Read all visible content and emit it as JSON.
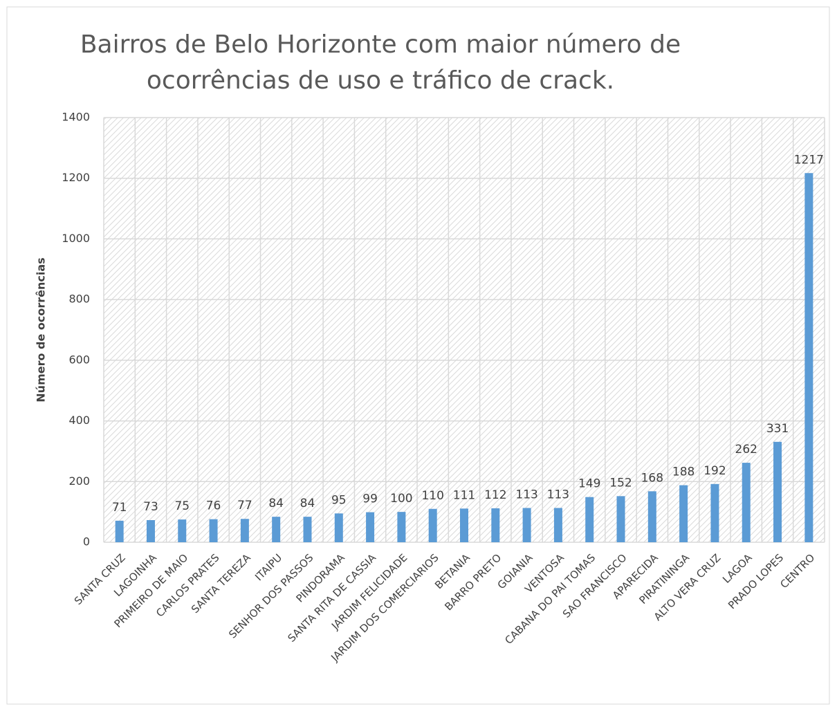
{
  "chart_data": {
    "type": "bar",
    "title": [
      "Bairros de Belo Horizonte com maior número de",
      "ocorrências de uso e tráfico de crack."
    ],
    "y_label": "Número de ocorrências",
    "categories": [
      "SANTA CRUZ",
      "LAGOINHA",
      "PRIMEIRO DE MAIO",
      "CARLOS PRATES",
      "SANTA TEREZA",
      "ITAIPU",
      "SENHOR DOS PASSOS",
      "PINDORAMA",
      "SANTA RITA DE CASSIA",
      "JARDIM FELICIDADE",
      "JARDIM DOS COMERCIARIOS",
      "BETANIA",
      "BARRO PRETO",
      "GOIANIA",
      "VENTOSA",
      "CABANA DO PAI TOMAS",
      "SAO FRANCISCO",
      "APARECIDA",
      "PIRATININGA",
      "ALTO VERA CRUZ",
      "LAGOA",
      "PRADO LOPES",
      "CENTRO"
    ],
    "values": [
      71,
      73,
      75,
      76,
      77,
      84,
      84,
      95,
      99,
      100,
      110,
      111,
      112,
      113,
      113,
      149,
      152,
      168,
      188,
      192,
      262,
      331,
      1217
    ],
    "color": "#5b9bd5",
    "ylim": [
      0,
      1400
    ],
    "yticks": [
      0,
      200,
      400,
      600,
      800,
      1000,
      1200,
      1400
    ],
    "grid": true
  }
}
